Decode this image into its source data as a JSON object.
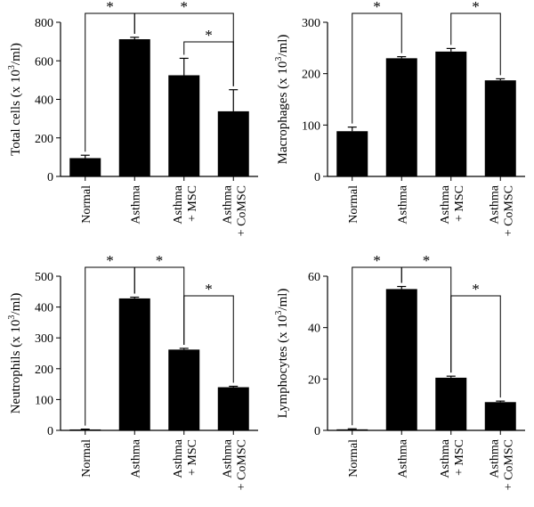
{
  "chart_data": [
    {
      "type": "bar",
      "categories": [
        "Normal",
        "Asthma",
        "Asthma|+ MSC",
        "Asthma|+ CoMSC"
      ],
      "values": [
        95,
        712,
        525,
        338
      ],
      "errors": [
        15,
        10,
        88,
        112
      ],
      "ylabel": "Total cells (x 10|3|/ml)",
      "ylim": [
        0,
        800
      ],
      "yticks": [
        0,
        200,
        400,
        600,
        800
      ],
      "significance": [
        {
          "from": 0,
          "to": 1,
          "level": 3,
          "label": "*"
        },
        {
          "from": 1,
          "to": 3,
          "level": 3,
          "label": "*"
        },
        {
          "from": 2,
          "to": 3,
          "level": 2,
          "label": "*"
        }
      ]
    },
    {
      "type": "bar",
      "categories": [
        "Normal",
        "Asthma",
        "Asthma|+ MSC",
        "Asthma|+ CoMSC"
      ],
      "values": [
        88,
        230,
        243,
        187
      ],
      "errors": [
        8,
        3,
        6,
        3
      ],
      "ylabel": "Macrophages (x 10|3|/ml)",
      "ylim": [
        0,
        300
      ],
      "yticks": [
        0,
        100,
        200,
        300
      ],
      "significance": [
        {
          "from": 0,
          "to": 1,
          "level": 3,
          "label": "*"
        },
        {
          "from": 2,
          "to": 3,
          "level": 3,
          "label": "*"
        }
      ]
    },
    {
      "type": "bar",
      "categories": [
        "Normal",
        "Asthma",
        "Asthma|+ MSC",
        "Asthma|+ CoMSC"
      ],
      "values": [
        3,
        428,
        262,
        140
      ],
      "errors": [
        1,
        4,
        4,
        3
      ],
      "ylabel": "Neutrophils (x 10|3|/ml)",
      "ylim": [
        0,
        500
      ],
      "yticks": [
        0,
        100,
        200,
        300,
        400,
        500
      ],
      "significance": [
        {
          "from": 0,
          "to": 1,
          "level": 3,
          "label": "*"
        },
        {
          "from": 1,
          "to": 2,
          "level": 3,
          "label": "*"
        },
        {
          "from": 2,
          "to": 3,
          "level": 2,
          "label": "*"
        }
      ]
    },
    {
      "type": "bar",
      "categories": [
        "Normal",
        "Asthma",
        "Asthma|+ MSC",
        "Asthma|+ CoMSC"
      ],
      "values": [
        0.4,
        55,
        20.5,
        11
      ],
      "errors": [
        0.2,
        1,
        0.6,
        0.4
      ],
      "ylabel": "Lymphocytes (x 10|3|/ml)",
      "ylim": [
        0,
        60
      ],
      "yticks": [
        0,
        20,
        40,
        60
      ],
      "significance": [
        {
          "from": 0,
          "to": 1,
          "level": 3,
          "label": "*"
        },
        {
          "from": 1,
          "to": 2,
          "level": 3,
          "label": "*"
        },
        {
          "from": 2,
          "to": 3,
          "level": 2,
          "label": "*"
        }
      ]
    }
  ]
}
